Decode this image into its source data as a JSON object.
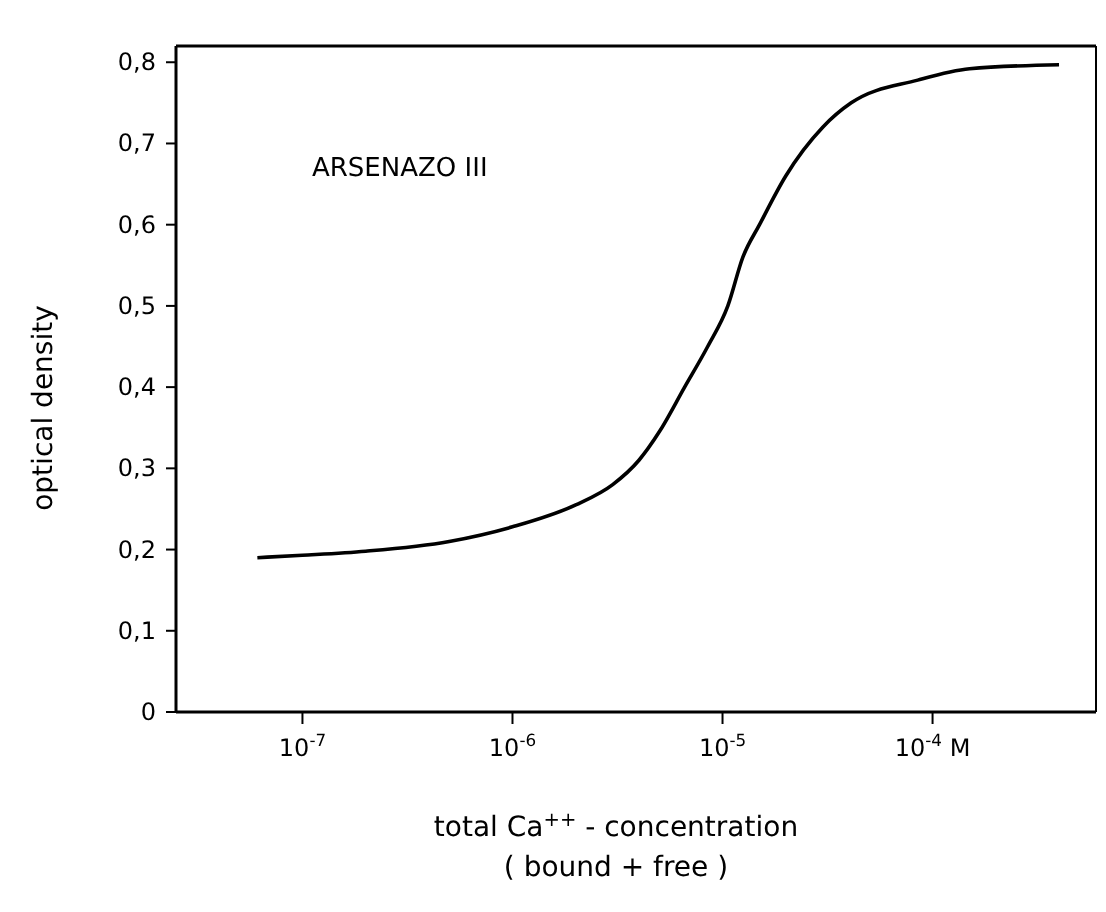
{
  "chart_data": {
    "type": "line",
    "xlabel": "total Ca$^{++}$ - concentration\n( bound + free )",
    "ylabel": "optical  density",
    "annotations": [
      "ARSENAZO III"
    ],
    "x": [
      6.1e-08,
      1e-07,
      2e-07,
      5e-07,
      1e-06,
      2e-06,
      3e-06,
      4e-06,
      5e-06,
      6.6e-06,
      8.5e-06,
      1.06e-05,
      1.25e-05,
      1.5e-05,
      2e-05,
      3e-05,
      4.1e-05,
      8.5e-05,
      0.00015,
      0.0004
    ],
    "series": [
      {
        "color": "#000000",
        "values": [
          0.19,
          0.193,
          0.198,
          0.21,
          0.228,
          0.255,
          0.28,
          0.31,
          0.345,
          0.4,
          0.45,
          0.5,
          0.56,
          0.6,
          0.66,
          0.72,
          0.75,
          0.778,
          0.792,
          0.797
        ]
      }
    ],
    "log": "x",
    "xlim": [
      2.5e-08,
      0.0006
    ],
    "xticks": [
      {
        "value": 1e-07,
        "label": "10$^{-7}$"
      },
      {
        "value": 1e-06,
        "label": "10$^{-6}$"
      },
      {
        "value": 1e-05,
        "label": "10$^{-5}$"
      },
      {
        "value": 0.0001,
        "label": "10$^{-4}$ M"
      }
    ],
    "ylim": [
      0,
      0.82
    ],
    "yticks": [
      {
        "value": 0,
        "label": "0"
      },
      {
        "value": 0.1,
        "label": "0,1"
      },
      {
        "value": 0.2,
        "label": "0,2"
      },
      {
        "value": 0.3,
        "label": "0,3"
      },
      {
        "value": 0.4,
        "label": "0,4"
      },
      {
        "value": 0.5,
        "label": "0,5"
      },
      {
        "value": 0.6,
        "label": "0,6"
      },
      {
        "value": 0.7,
        "label": "0,7"
      },
      {
        "value": 0.8,
        "label": "0,8"
      }
    ],
    "grid": false,
    "legend": false,
    "marker": "none",
    "line_style": "solid"
  }
}
